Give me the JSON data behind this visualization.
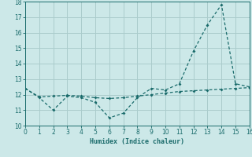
{
  "xlabel": "Humidex (Indice chaleur)",
  "bg_color": "#cce8e8",
  "grid_color": "#aacccc",
  "line_color": "#1a6b6b",
  "x_line1": [
    0,
    1,
    2,
    3,
    4,
    5,
    6,
    7,
    8,
    9,
    10,
    11,
    12,
    13,
    14,
    15,
    16
  ],
  "y_line1": [
    12.4,
    11.8,
    11.0,
    11.9,
    11.8,
    11.5,
    10.5,
    10.8,
    11.8,
    12.4,
    12.3,
    12.7,
    14.8,
    16.5,
    17.8,
    12.7,
    12.5
  ],
  "x_line2": [
    0,
    1,
    2,
    3,
    4,
    5,
    6,
    7,
    8,
    9,
    10,
    11,
    12,
    13,
    14,
    15,
    16
  ],
  "y_line2": [
    12.4,
    11.85,
    11.9,
    11.95,
    11.9,
    11.8,
    11.75,
    11.8,
    11.9,
    12.0,
    12.1,
    12.2,
    12.25,
    12.3,
    12.35,
    12.4,
    12.45
  ],
  "xlim": [
    0,
    16
  ],
  "ylim": [
    10,
    18
  ],
  "yticks": [
    10,
    11,
    12,
    13,
    14,
    15,
    16,
    17,
    18
  ],
  "xticks": [
    0,
    1,
    2,
    3,
    4,
    5,
    6,
    7,
    8,
    9,
    10,
    11,
    12,
    13,
    14,
    15,
    16
  ]
}
